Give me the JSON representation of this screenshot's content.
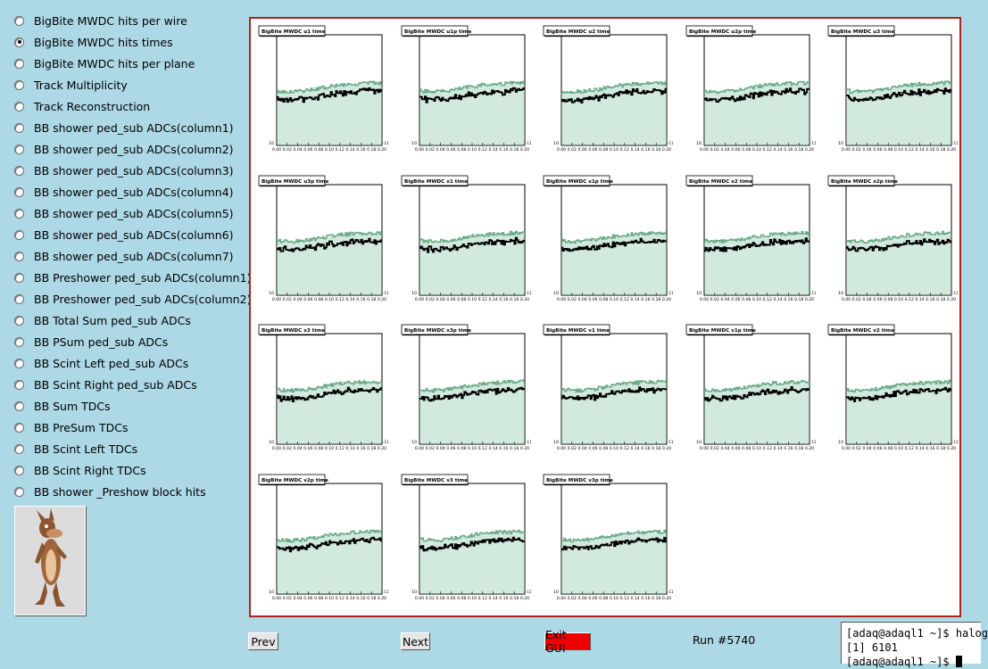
{
  "menu": {
    "items": [
      {
        "label": "BigBite MWDC hits per wire",
        "selected": false
      },
      {
        "label": "BigBite MWDC hits times",
        "selected": true
      },
      {
        "label": "BigBite MWDC hits per plane",
        "selected": false
      },
      {
        "label": "Track Multiplicity",
        "selected": false
      },
      {
        "label": "Track Reconstruction",
        "selected": false
      },
      {
        "label": "BB shower ped_sub ADCs(column1)",
        "selected": false
      },
      {
        "label": "BB shower ped_sub ADCs(column2)",
        "selected": false
      },
      {
        "label": "BB shower ped_sub ADCs(column3)",
        "selected": false
      },
      {
        "label": "BB shower ped_sub ADCs(column4)",
        "selected": false
      },
      {
        "label": "BB shower ped_sub ADCs(column5)",
        "selected": false
      },
      {
        "label": "BB shower ped_sub ADCs(column6)",
        "selected": false
      },
      {
        "label": "BB shower ped_sub ADCs(column7)",
        "selected": false
      },
      {
        "label": "BB Preshower ped_sub ADCs(column1)",
        "selected": false
      },
      {
        "label": "BB Preshower ped_sub ADCs(column2)",
        "selected": false
      },
      {
        "label": "BB Total Sum ped_sub ADCs",
        "selected": false
      },
      {
        "label": "BB PSum ped_sub ADCs",
        "selected": false
      },
      {
        "label": "BB Scint Left ped_sub ADCs",
        "selected": false
      },
      {
        "label": "BB Scint Right ped_sub ADCs",
        "selected": false
      },
      {
        "label": "BB Sum TDCs",
        "selected": false
      },
      {
        "label": "BB PreSum TDCs",
        "selected": false
      },
      {
        "label": "BB Scint Left TDCs",
        "selected": false
      },
      {
        "label": "BB Scint Right TDCs",
        "selected": false
      },
      {
        "label": "BB shower _Preshow block hits",
        "selected": false
      }
    ]
  },
  "logo": {
    "icon": "wile-e-coyote-icon"
  },
  "canvas": {
    "border_color": "#b22222",
    "pads": [
      {
        "title": "BigBite MWDC u1 time"
      },
      {
        "title": "BigBite MWDC u1p time"
      },
      {
        "title": "BigBite MWDC u2 time"
      },
      {
        "title": "BigBite MWDC u2p time"
      },
      {
        "title": "BigBite MWDC u3 time"
      },
      {
        "title": "BigBite MWDC u3p time"
      },
      {
        "title": "BigBite MWDC x1 time"
      },
      {
        "title": "BigBite MWDC x1p time"
      },
      {
        "title": "BigBite MWDC x2 time"
      },
      {
        "title": "BigBite MWDC x2p time"
      },
      {
        "title": "BigBite MWDC x3 time"
      },
      {
        "title": "BigBite MWDC x3p time"
      },
      {
        "title": "BigBite MWDC v1 time"
      },
      {
        "title": "BigBite MWDC v1p time"
      },
      {
        "title": "BigBite MWDC v2 time"
      },
      {
        "title": "BigBite MWDC v2p time"
      },
      {
        "title": "BigBite MWDC v3 time"
      },
      {
        "title": "BigBite MWDC v3p time"
      }
    ],
    "x_ticks": [
      "0.00",
      "0.02",
      "0.04",
      "0.06",
      "0.08",
      "0.10",
      "0.12",
      "0.14",
      "0.16",
      "0.18",
      "0.20"
    ],
    "y_min_label": "10",
    "y_max_label": "-11",
    "series_colors": {
      "fill": "#7fbf9f",
      "outline": "#6aaa8a",
      "black": "#000000"
    }
  },
  "buttons": {
    "prev": "Prev",
    "next": "Next",
    "exit": "Exit GUI"
  },
  "run_label": "Run #5740",
  "terminal": {
    "line1": "[adaq@adaql1 ~]$ halog",
    "line2": "[1] 6101",
    "line3": "[adaq@adaql1 ~]$ "
  }
}
